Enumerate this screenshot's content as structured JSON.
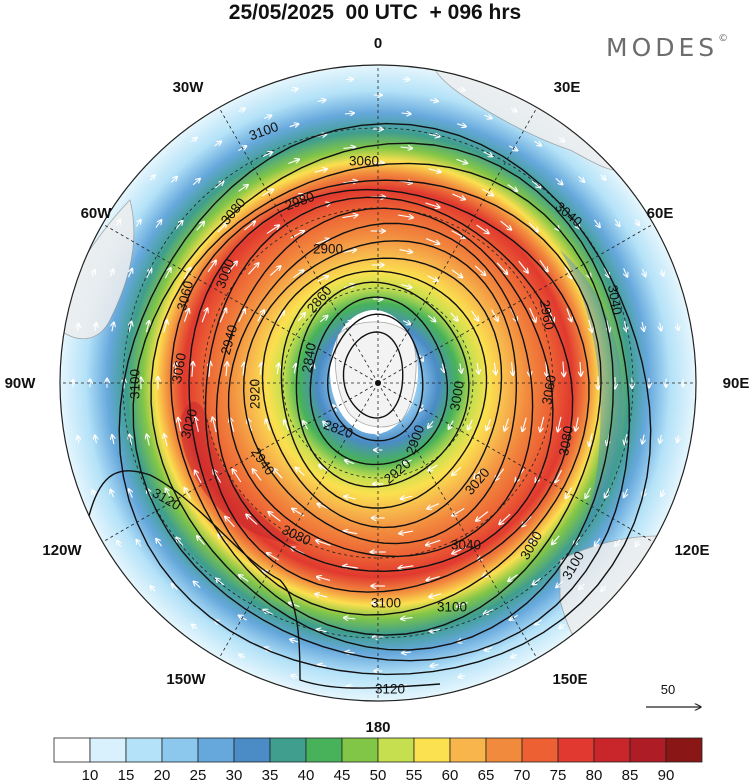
{
  "header": {
    "title": "25/05/2025  00 UTC  + 096 hrs",
    "brand": "MODES",
    "brand_mark": "©"
  },
  "map": {
    "projection": "polar stereographic (south pole)",
    "longitude_labels": [
      "0",
      "30E",
      "60E",
      "90E",
      "120E",
      "150E",
      "180",
      "150W",
      "120W",
      "90W",
      "60W",
      "30W"
    ],
    "contour_values": [
      2820,
      2840,
      2860,
      2880,
      2900,
      2920,
      2940,
      2960,
      2980,
      3000,
      3020,
      3040,
      3060,
      3080,
      3100,
      3120
    ],
    "contour_labels": [
      {
        "text": "3100"
      },
      {
        "text": "3060"
      },
      {
        "text": "3040"
      },
      {
        "text": "2980"
      },
      {
        "text": "3080"
      },
      {
        "text": "2900"
      },
      {
        "text": "3000"
      },
      {
        "text": "2860"
      },
      {
        "text": "3060"
      },
      {
        "text": "2940"
      },
      {
        "text": "2840"
      },
      {
        "text": "3060"
      },
      {
        "text": "3100"
      },
      {
        "text": "2920"
      },
      {
        "text": "2820"
      },
      {
        "text": "3040"
      },
      {
        "text": "2960"
      },
      {
        "text": "2940"
      },
      {
        "text": "2920"
      },
      {
        "text": "2900"
      },
      {
        "text": "3000"
      },
      {
        "text": "3020"
      },
      {
        "text": "3020"
      },
      {
        "text": "3060"
      },
      {
        "text": "3080"
      },
      {
        "text": "3040"
      },
      {
        "text": "3080"
      },
      {
        "text": "3120"
      },
      {
        "text": "3080"
      },
      {
        "text": "3100"
      },
      {
        "text": "3100"
      },
      {
        "text": "3120"
      },
      {
        "text": "3100"
      }
    ],
    "reference_vector": {
      "label": "50"
    }
  },
  "colorbar": {
    "levels": [
      "10",
      "15",
      "20",
      "25",
      "30",
      "35",
      "40",
      "45",
      "50",
      "55",
      "60",
      "65",
      "70",
      "75",
      "80",
      "85",
      "90"
    ],
    "colors": [
      "#ffffff",
      "#d8f1fc",
      "#b4e2f8",
      "#8cc8ee",
      "#66a8dc",
      "#4b8bc6",
      "#3f9e8e",
      "#47b25a",
      "#82c647",
      "#c6df4e",
      "#fbe04f",
      "#f7b54c",
      "#f28a3e",
      "#ec6034",
      "#e1392f",
      "#c9262b",
      "#ae1d25",
      "#8b1616"
    ]
  }
}
